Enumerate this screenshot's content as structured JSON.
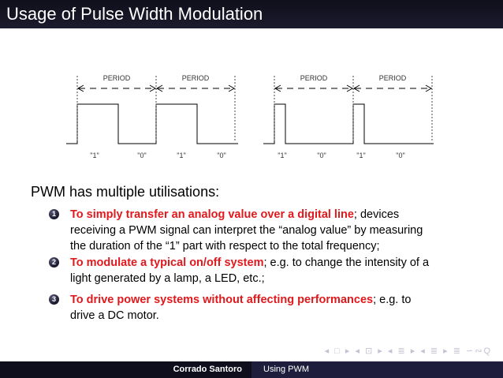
{
  "slide": {
    "title": "Usage of Pulse Width Modulation"
  },
  "diagram": {
    "period_label": "PERIOD",
    "left_bit_labels": [
      "\"1\"",
      "\"0\"",
      "\"1\"",
      "\"0\""
    ],
    "right_bit_labels": [
      "\"1\"",
      "\"0\"",
      "\"1\"",
      "\"0\""
    ]
  },
  "body": {
    "intro": "PWM has multiple utilisations:",
    "items": [
      {
        "number": "1",
        "highlight": "To simply transfer an analog value over a digital line",
        "line1_rest": "; devices",
        "line2": "receiving a PWM signal can interpret the “analog value” by measuring",
        "line3": "the duration of the “1” part with respect to the total frequency;"
      },
      {
        "number": "2",
        "highlight": "To modulate a typical on/off system",
        "line1_rest": "; e.g. to change the intensity of a",
        "line2": "light generated by a lamp, a LED, etc.;"
      },
      {
        "number": "3",
        "highlight": "To drive power systems without affecting performances",
        "line1_rest": "; e.g. to",
        "line2": "drive a DC motor."
      }
    ]
  },
  "navigation": {
    "symbols": "◂ □ ▸ ◂ ⊡ ▸ ◂ ≣ ▸ ◂ ≣ ▸ ≣ ∽∾Q"
  },
  "footer": {
    "author": "Corrado Santoro",
    "short_title": "Using PWM"
  }
}
